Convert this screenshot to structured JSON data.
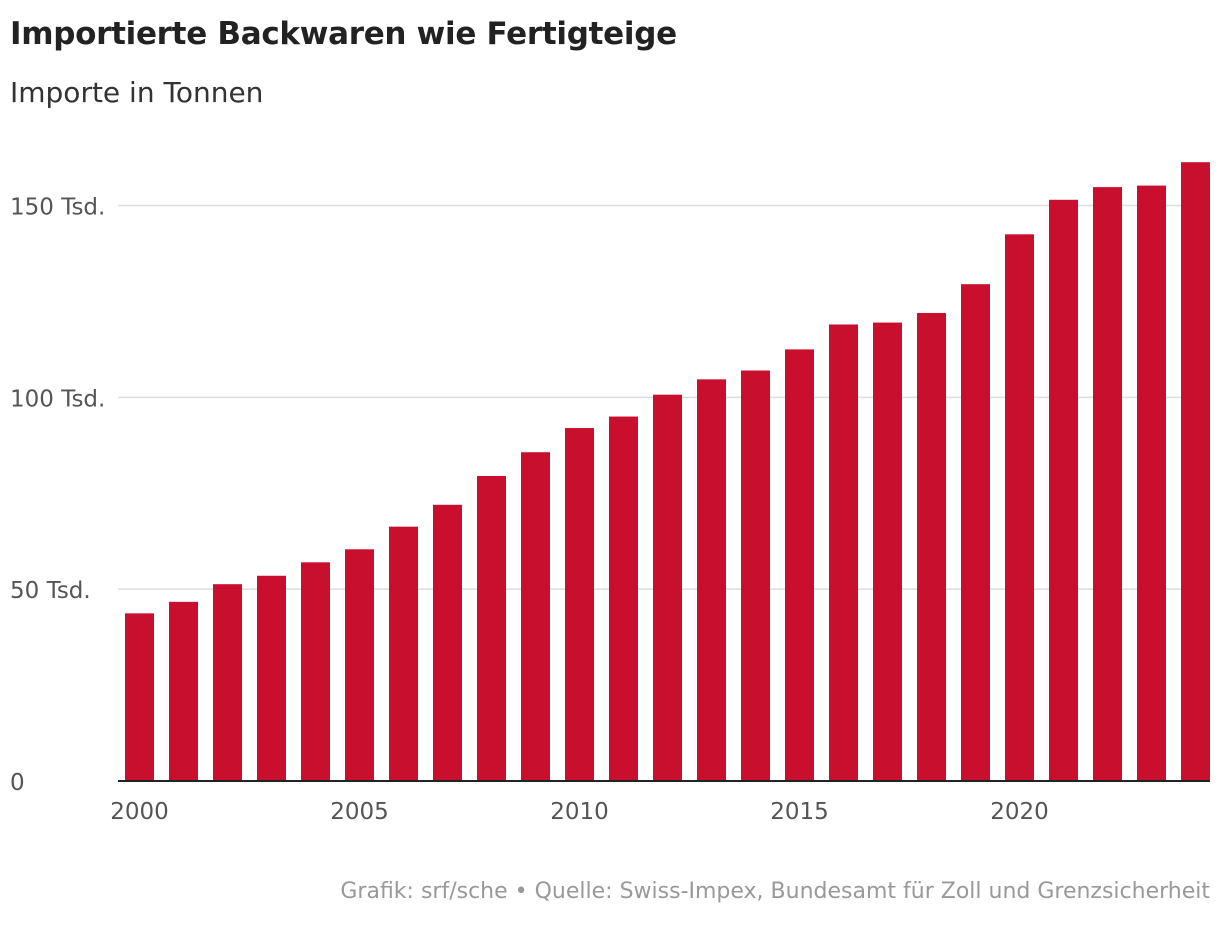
{
  "header": {
    "title": "Importierte Backwaren wie Fertigteige",
    "subtitle": "Importe in Tonnen"
  },
  "footer": {
    "credit": "Grafik: srf/sche • Quelle: Swiss-Impex, Bundesamt für Zoll und Grenzsicherheit"
  },
  "colors": {
    "bar": "#c8102e",
    "grid": "#dddddd",
    "axis": "#222222",
    "tick_text": "#555555"
  },
  "chart_data": {
    "type": "bar",
    "title": "Importierte Backwaren wie Fertigteige",
    "subtitle": "Importe in Tonnen",
    "xlabel": "",
    "ylabel": "",
    "categories": [
      2000,
      2001,
      2002,
      2003,
      2004,
      2005,
      2006,
      2007,
      2008,
      2009,
      2010,
      2011,
      2012,
      2013,
      2014,
      2015,
      2016,
      2017,
      2018,
      2019,
      2020,
      2021,
      2022,
      2023,
      2024
    ],
    "values": [
      43700,
      46700,
      51300,
      53500,
      57000,
      60400,
      66300,
      72000,
      79500,
      85700,
      92000,
      95000,
      100700,
      104700,
      107000,
      112500,
      119000,
      119500,
      122000,
      129500,
      142500,
      151500,
      154800,
      155200,
      161300
    ],
    "ylim": [
      0,
      165000
    ],
    "yticks": [
      0,
      50000,
      100000,
      150000
    ],
    "ytick_labels": [
      "0",
      "50 Tsd.",
      "100 Tsd.",
      "150 Tsd."
    ],
    "xticks": [
      2000,
      2005,
      2010,
      2015,
      2020
    ],
    "xtick_labels": [
      "2000",
      "2005",
      "2010",
      "2015",
      "2020"
    ],
    "grid": true,
    "legend": "none"
  }
}
